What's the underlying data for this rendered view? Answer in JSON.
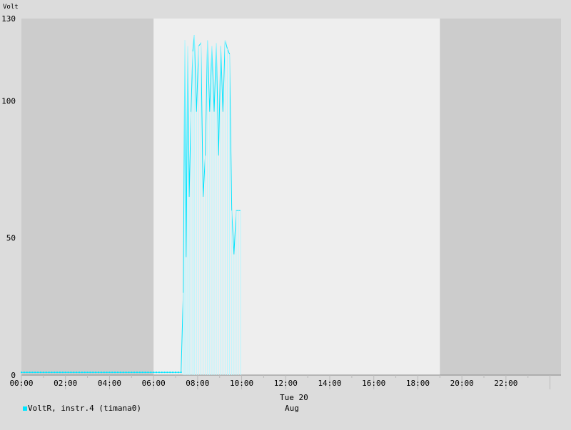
{
  "chart_data": {
    "type": "line",
    "ylabel": "Volt",
    "ylim": [
      0,
      130
    ],
    "yticks": [
      0,
      50,
      100,
      130
    ],
    "xlim_hours": [
      0,
      24.5
    ],
    "xticks": [
      "00:00",
      "02:00",
      "04:00",
      "06:00",
      "08:00",
      "10:00",
      "12:00",
      "14:00",
      "16:00",
      "18:00",
      "20:00",
      "22:00"
    ],
    "date_label_line1": "Tue 20",
    "date_label_line2": "Aug",
    "night_shading_hours": [
      [
        0,
        6
      ],
      [
        19,
        24.5
      ]
    ],
    "colors": {
      "line": "#00e5ff",
      "day": "#eeeeee",
      "night": "#cccccc",
      "background": "#dcdcdc"
    },
    "series": [
      {
        "name": "VoltR, instr.4 (timana0)",
        "x_hours": [
          0,
          7.25,
          7.35,
          7.42,
          7.48,
          7.55,
          7.62,
          7.7,
          7.78,
          7.85,
          7.95,
          8.05,
          8.15,
          8.25,
          8.35,
          8.45,
          8.55,
          8.65,
          8.75,
          8.85,
          8.95,
          9.05,
          9.15,
          9.25,
          9.35,
          9.45,
          9.55,
          9.65,
          9.75,
          9.85,
          9.95
        ],
        "y": [
          1,
          1,
          30,
          122,
          43,
          120,
          65,
          96,
          118,
          124,
          96,
          120,
          121,
          65,
          80,
          122,
          96,
          120,
          96,
          121,
          80,
          120,
          96,
          122,
          119,
          117,
          60,
          44,
          60,
          60,
          60
        ]
      }
    ]
  }
}
